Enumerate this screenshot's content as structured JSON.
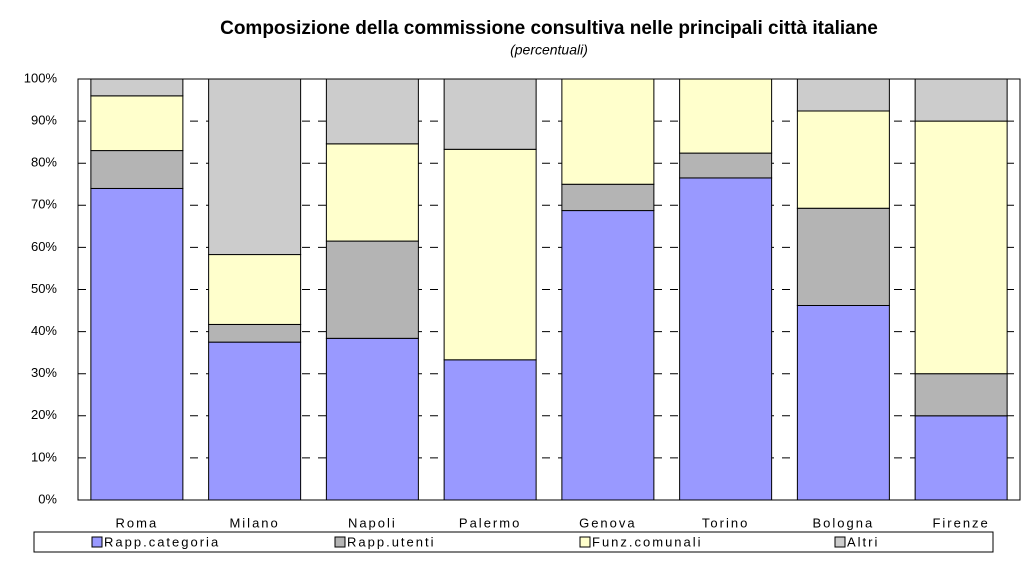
{
  "chart_data": {
    "type": "stacked_bar",
    "title": "Composizione della commissione consultiva nelle principali città italiane",
    "subtitle": "(percentuali)",
    "categories": [
      "Roma",
      "Milano",
      "Napoli",
      "Palermo",
      "Genova",
      "Torino",
      "Bologna",
      "Firenze"
    ],
    "series": [
      {
        "name": "Rapp.categoria",
        "color": "#9999ff",
        "values": [
          74,
          37.5,
          38.4,
          33.3,
          68.75,
          76.5,
          46.2,
          20
        ]
      },
      {
        "name": "Rapp.utenti",
        "color": "#b4b4b4",
        "values": [
          9,
          4.2,
          23.1,
          0,
          6.25,
          5.9,
          23.1,
          10
        ]
      },
      {
        "name": "Funz.comunali",
        "color": "#ffffcc",
        "values": [
          13,
          16.6,
          23.1,
          50,
          25,
          17.6,
          23.1,
          60
        ]
      },
      {
        "name": "Altri",
        "color": "#cccccc",
        "values": [
          4,
          41.7,
          15.4,
          16.7,
          0,
          0,
          7.6,
          10
        ]
      }
    ],
    "ylim": [
      0,
      100
    ],
    "yticks": [
      {
        "value": 0,
        "label": "0%"
      },
      {
        "value": 10,
        "label": "10%"
      },
      {
        "value": 20,
        "label": "20%"
      },
      {
        "value": 30,
        "label": "30%"
      },
      {
        "value": 40,
        "label": "40%"
      },
      {
        "value": 50,
        "label": "50%"
      },
      {
        "value": 60,
        "label": "60%"
      },
      {
        "value": 70,
        "label": "70%"
      },
      {
        "value": 80,
        "label": "80%"
      },
      {
        "value": 90,
        "label": "90%"
      },
      {
        "value": 100,
        "label": "100%"
      }
    ],
    "grid": true,
    "legend": "bottom"
  }
}
